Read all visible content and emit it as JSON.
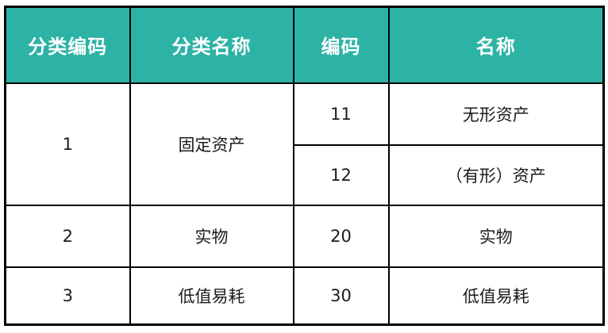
{
  "colors": {
    "header-bg": "#2DB3A5",
    "header-text": "#FFFFFF",
    "border": "#000000",
    "body-text": "#1C1C1C",
    "page-bg": "#FFFFFF"
  },
  "table": {
    "headers": [
      "分类编码",
      "分类名称",
      "编码",
      "名称"
    ],
    "groups": [
      {
        "category_code": "1",
        "category_name": "固定资产",
        "items": [
          {
            "code": "11",
            "name": "无形资产"
          },
          {
            "code": "12",
            "name": "（有形）资产"
          }
        ]
      },
      {
        "category_code": "2",
        "category_name": "实物",
        "items": [
          {
            "code": "20",
            "name": "实物"
          }
        ]
      },
      {
        "category_code": "3",
        "category_name": "低值易耗",
        "items": [
          {
            "code": "30",
            "name": "低值易耗"
          }
        ]
      }
    ]
  }
}
